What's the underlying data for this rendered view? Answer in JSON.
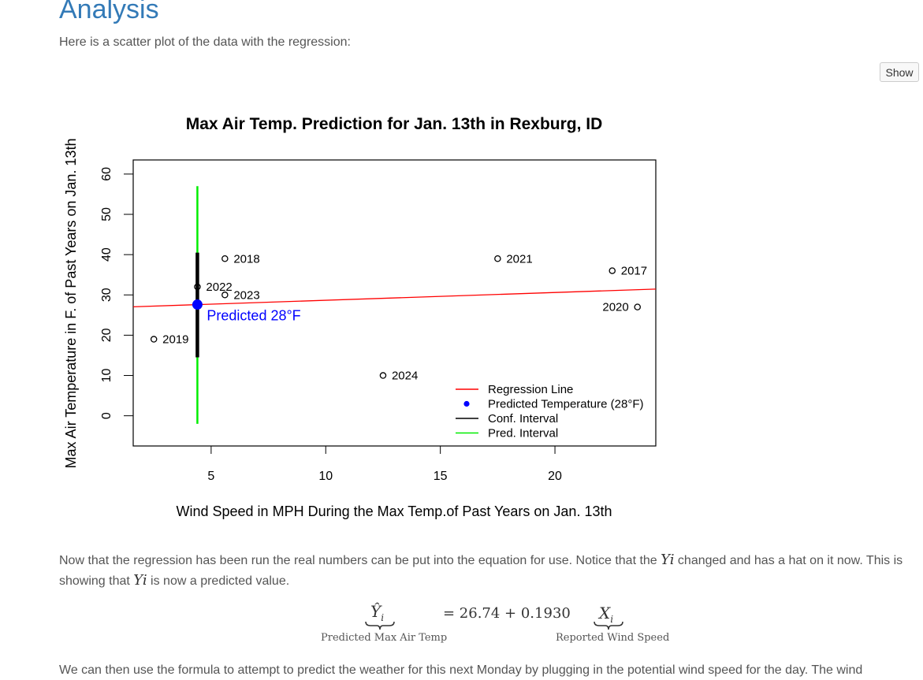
{
  "page": {
    "heading": "Analysis",
    "intro": "Here is a scatter plot of the data with the regression:",
    "show_button": "Show",
    "para1_a": "Now that the regression has been run the real numbers can be put into the equation for use. Notice that the ",
    "para1_var1": "Yi",
    "para1_b": " changed and has a hat on it now. This is showing that ",
    "para1_var2": "Yi",
    "para1_c": " is now a predicted value.",
    "equation": {
      "lhs": "Ŷ",
      "lhs_sub": "i",
      "rhs": "= 26.74 + 0.1930",
      "x": "X",
      "x_sub": "i",
      "lhs_label": "Predicted Max Air Temp",
      "x_label": "Reported Wind Speed"
    },
    "para2": "We can then use the formula to attempt to predict the weather for this next Monday by plugging in the potential wind speed for the day. The wind"
  },
  "chart_data": {
    "type": "scatter",
    "title": "Max Air Temp. Prediction for Jan. 13th in Rexburg, ID",
    "xlabel": "Wind Speed in MPH During the Max Temp.of Past Years on Jan. 13th",
    "ylabel": "Max Air Temperature in F. of Past Years on Jan. 13th",
    "xlim": [
      1.6,
      24.4
    ],
    "ylim": [
      -7.5,
      63.5
    ],
    "xticks": [
      5,
      10,
      15,
      20
    ],
    "yticks": [
      0,
      10,
      20,
      30,
      40,
      50,
      60
    ],
    "points": [
      {
        "x": 5.6,
        "y": 39,
        "label": "2018",
        "label_side": "right"
      },
      {
        "x": 17.5,
        "y": 39,
        "label": "2021",
        "label_side": "right"
      },
      {
        "x": 22.5,
        "y": 36,
        "label": "2017",
        "label_side": "right"
      },
      {
        "x": 4.4,
        "y": 32,
        "label": "2022",
        "label_side": "right"
      },
      {
        "x": 5.6,
        "y": 30,
        "label": "2023",
        "label_side": "right"
      },
      {
        "x": 23.6,
        "y": 27,
        "label": "2020",
        "label_side": "left"
      },
      {
        "x": 2.5,
        "y": 19,
        "label": "2019",
        "label_side": "right"
      },
      {
        "x": 12.5,
        "y": 10,
        "label": "2024",
        "label_side": "right"
      }
    ],
    "regression": {
      "intercept": 26.74,
      "slope": 0.193,
      "color": "#ff0000"
    },
    "prediction": {
      "x": 4.4,
      "y": 27.6,
      "label": "Predicted 28°F",
      "color": "#0000ff"
    },
    "conf_interval": {
      "x": 4.4,
      "low": 14.5,
      "high": 40.5,
      "color": "#000000"
    },
    "pred_interval": {
      "x": 4.4,
      "low": -2,
      "high": 57,
      "color": "#00ee00"
    },
    "legend": {
      "position": "bottom-right",
      "entries": [
        {
          "label": "Regression Line",
          "kind": "line",
          "color": "#ff0000"
        },
        {
          "label": "Predicted Temperature (28°F)",
          "kind": "point",
          "color": "#0000ff"
        },
        {
          "label": "Conf. Interval",
          "kind": "line",
          "color": "#000000"
        },
        {
          "label": "Pred. Interval",
          "kind": "line",
          "color": "#00ee00"
        }
      ]
    }
  }
}
